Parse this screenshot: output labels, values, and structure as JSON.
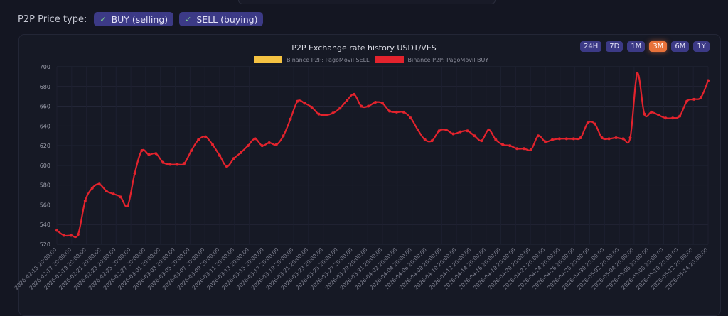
{
  "filters": {
    "label": "P2P Price type:",
    "buy_label": "BUY (selling)",
    "sell_label": "SELL (buying)",
    "check_icon": "✓"
  },
  "ranges": [
    {
      "label": "24H",
      "active": false
    },
    {
      "label": "7D",
      "active": false
    },
    {
      "label": "1M",
      "active": false
    },
    {
      "label": "3M",
      "active": true
    },
    {
      "label": "6M",
      "active": false
    },
    {
      "label": "1Y",
      "active": false
    }
  ],
  "colors": {
    "background": "#141622",
    "buy_line": "#e3232d",
    "sell_swatch": "#f5c242",
    "accent": "#3c3a86",
    "active_range": "#e8723a"
  },
  "chart_data": {
    "type": "line",
    "title": "P2P Exchange rate history USDT/VES",
    "legend": [
      {
        "name": "Binance P2P: PagoMovil SELL",
        "hidden": true
      },
      {
        "name": "Binance P2P: PagoMovil BUY",
        "hidden": false
      }
    ],
    "ylim": [
      520,
      700
    ],
    "yticks": [
      520,
      540,
      560,
      580,
      600,
      620,
      640,
      660,
      680,
      700
    ],
    "grid": true,
    "xtick_labels": [
      "2026-02-15 20:00:00",
      "2026-02-17 20:00:00",
      "2026-02-19 20:00:00",
      "2026-02-21 20:00:00",
      "2026-02-23 20:00:00",
      "2026-02-25 20:00:00",
      "2026-02-27 20:00:00",
      "2026-03-01 20:00:00",
      "2026-03-03 20:00:00",
      "2026-03-05 20:00:00",
      "2026-03-07 20:00:00",
      "2026-03-09 20:00:00",
      "2026-03-11 20:00:00",
      "2026-03-13 20:00:00",
      "2026-03-15 20:00:00",
      "2026-03-17 20:00:00",
      "2026-03-19 20:00:00",
      "2026-03-21 20:00:00",
      "2026-03-23 20:00:00",
      "2026-03-25 20:00:00",
      "2026-03-27 20:00:00",
      "2026-03-29 20:00:00",
      "2026-03-31 20:00:00",
      "2026-04-02 20:00:00",
      "2026-04-04 20:00:00",
      "2026-04-06 20:00:00",
      "2026-04-08 20:00:00",
      "2026-04-10 20:00:00",
      "2026-04-12 20:00:00",
      "2026-04-14 20:00:00",
      "2026-04-16 20:00:00",
      "2026-04-18 20:00:00",
      "2026-04-20 20:00:00",
      "2026-04-22 20:00:00",
      "2026-04-24 20:00:00",
      "2026-04-26 20:00:00",
      "2026-04-28 20:00:00",
      "2026-04-30 20:00:00",
      "2026-05-02 20:00:00",
      "2026-05-04 20:00:00",
      "2026-05-06 20:00:00",
      "2026-05-08 20:00:00",
      "2026-05-10 20:00:00",
      "2026-05-12 20:00:00",
      "2026-05-14 20:00:00"
    ],
    "series": [
      {
        "name": "Binance P2P: PagoMovil BUY",
        "values": [
          534,
          529,
          529,
          530,
          564,
          577,
          581,
          574,
          571,
          568,
          559,
          592,
          615,
          611,
          612,
          603,
          601,
          601,
          602,
          615,
          626,
          629,
          621,
          610,
          599,
          607,
          613,
          620,
          627,
          620,
          623,
          621,
          630,
          647,
          665,
          663,
          659,
          652,
          651,
          653,
          658,
          666,
          672,
          660,
          660,
          664,
          663,
          655,
          654,
          654,
          648,
          636,
          626,
          625,
          635,
          636,
          632,
          634,
          635,
          630,
          625,
          636,
          626,
          621,
          620,
          617,
          617,
          616,
          630,
          624,
          626,
          627,
          627,
          627,
          628,
          643,
          642,
          628,
          627,
          628,
          627,
          628,
          693,
          652,
          654,
          651,
          648,
          648,
          650,
          665,
          667,
          669,
          686
        ]
      }
    ]
  }
}
